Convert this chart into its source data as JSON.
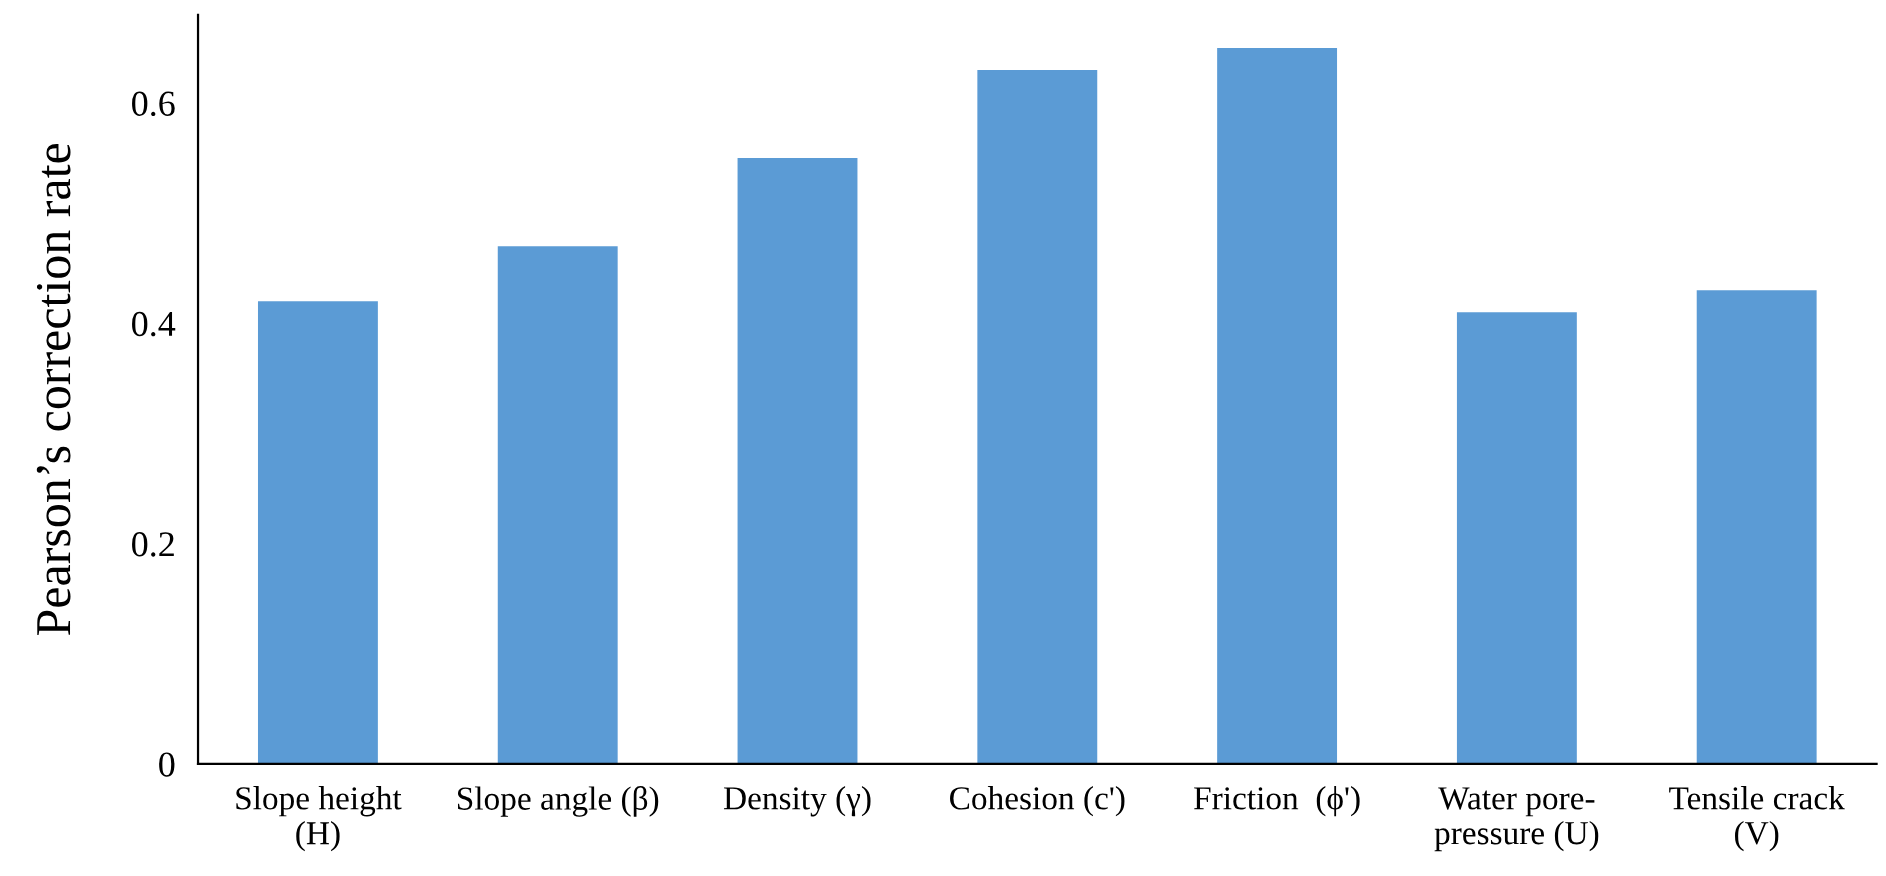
{
  "chart_data": {
    "type": "bar",
    "ylabel": "Pearson’s correction rate",
    "categories": [
      "Slope height\n(H)",
      "Slope angle (β)",
      "Density (γ)",
      "Cohesion (c')",
      "Friction  (ϕ')",
      "Water pore-\npressure (U)",
      "Tensile crack\n(V)"
    ],
    "values": [
      0.42,
      0.47,
      0.55,
      0.63,
      0.65,
      0.41,
      0.43
    ],
    "color": "#5b9bd5",
    "ylim": [
      0,
      0.68
    ],
    "yticks": [
      0,
      0.2,
      0.4,
      0.6
    ],
    "grid": false,
    "legend": false
  }
}
